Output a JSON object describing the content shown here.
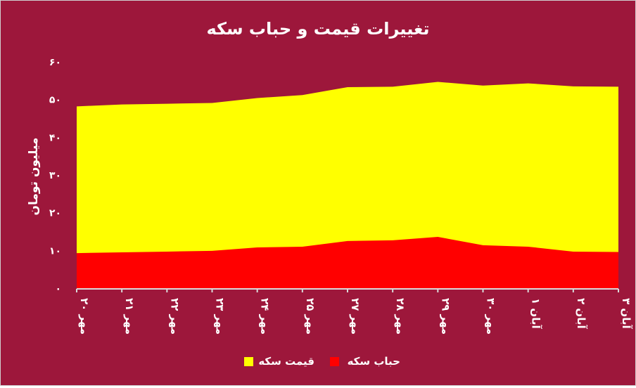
{
  "chart_data": {
    "type": "area",
    "title": "تغییرات قیمت و حباب سکه",
    "xlabel": "",
    "ylabel": "میلیون تومان",
    "categories": [
      "۲۰ مهر",
      "۲۱ مهر",
      "۲۲ مهر",
      "۲۳ مهر",
      "۲۴ مهر",
      "۲۵ مهر",
      "۲۷ مهر",
      "۲۸ مهر",
      "۲۹ مهر",
      "۳۰ مهر",
      "۱ آبان",
      "۲ آبان",
      "۳ آبان"
    ],
    "ylim": [
      0,
      60
    ],
    "yticks": [
      0,
      10,
      20,
      30,
      40,
      50,
      60
    ],
    "ytick_labels": [
      "۰",
      "۱۰",
      "۲۰",
      "۳۰",
      "۴۰",
      "۵۰",
      "۶۰"
    ],
    "grid": false,
    "legend_position": "bottom",
    "series": [
      {
        "name": "قیمت سکه",
        "color": "#ffff00",
        "values": [
          48.2,
          48.7,
          48.9,
          49.1,
          50.4,
          51.2,
          53.3,
          53.4,
          54.7,
          53.7,
          54.3,
          53.5,
          53.4
        ]
      },
      {
        "name": "حباب سکه",
        "color": "#ff0000",
        "values": [
          9.3,
          9.5,
          9.7,
          9.9,
          10.8,
          11.0,
          12.5,
          12.7,
          13.6,
          11.4,
          11.0,
          9.7,
          9.6
        ]
      }
    ]
  },
  "colors": {
    "background": "#9d173b",
    "axis": "#d9d9d9",
    "text": "#ffffff"
  }
}
